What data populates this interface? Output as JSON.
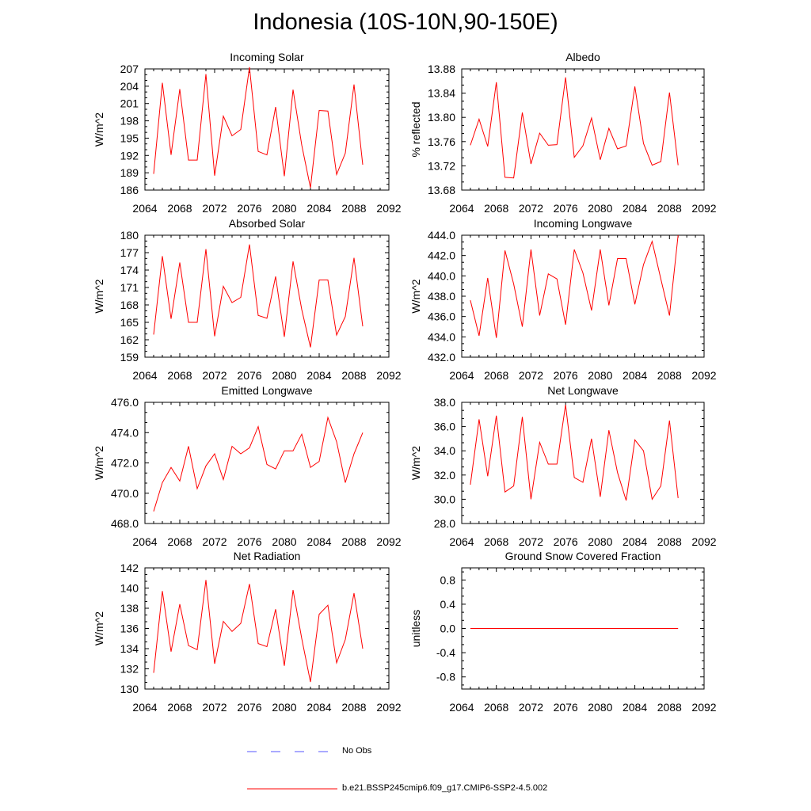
{
  "figure": {
    "title": "Indonesia (10S-10N,90-150E)",
    "series_color": "#ff0000",
    "obs_color": "#5555ff"
  },
  "legend": {
    "items": [
      {
        "label": "No Obs",
        "style": "dashed",
        "color": "#5555ff"
      },
      {
        "label": "b.e21.BSSP245cmip6.f09_g17.CMIP6-SSP2-4.5.002",
        "style": "solid",
        "color": "#ff0000"
      }
    ]
  },
  "chart_data": [
    {
      "type": "line",
      "title": "Incoming Solar",
      "ylabel": "W/m^2",
      "xlabel": "",
      "xlim": [
        2064,
        2092
      ],
      "xticks": [
        "2064",
        "2068",
        "2072",
        "2076",
        "2080",
        "2084",
        "2088",
        "2092"
      ],
      "ylim": [
        186,
        207
      ],
      "yticks": [
        "186",
        "189",
        "192",
        "195",
        "198",
        "201",
        "204",
        "207"
      ],
      "series": [
        {
          "x": [
            2065,
            2066,
            2067,
            2068,
            2069,
            2070,
            2071,
            2072,
            2073,
            2074,
            2075,
            2076,
            2077,
            2078,
            2079,
            2080,
            2081,
            2082,
            2083,
            2084,
            2085,
            2086,
            2087,
            2088,
            2089
          ],
          "values": [
            188.8,
            204.6,
            192.1,
            203.5,
            191.2,
            191.2,
            206.1,
            188.5,
            198.8,
            195.4,
            196.5,
            207.3,
            192.7,
            192.1,
            200.4,
            188.4,
            203.4,
            193.8,
            186.4,
            199.8,
            199.7,
            188.7,
            192.4,
            204.3,
            190.4
          ]
        }
      ]
    },
    {
      "type": "line",
      "title": "Albedo",
      "ylabel": "% reflected",
      "xlabel": "",
      "xlim": [
        2064,
        2092
      ],
      "xticks": [
        "2064",
        "2068",
        "2072",
        "2076",
        "2080",
        "2084",
        "2088",
        "2092"
      ],
      "ylim": [
        13.68,
        13.88
      ],
      "yticks": [
        "13.68",
        "13.72",
        "13.76",
        "13.80",
        "13.84",
        "13.88"
      ],
      "series": [
        {
          "x": [
            2065,
            2066,
            2067,
            2068,
            2069,
            2070,
            2071,
            2072,
            2073,
            2074,
            2075,
            2076,
            2077,
            2078,
            2079,
            2080,
            2081,
            2082,
            2083,
            2084,
            2085,
            2086,
            2087,
            2088,
            2089
          ],
          "values": [
            13.754,
            13.797,
            13.752,
            13.858,
            13.701,
            13.7,
            13.808,
            13.723,
            13.774,
            13.754,
            13.755,
            13.866,
            13.734,
            13.753,
            13.799,
            13.73,
            13.782,
            13.748,
            13.753,
            13.851,
            13.757,
            13.721,
            13.727,
            13.841,
            13.721
          ]
        }
      ]
    },
    {
      "type": "line",
      "title": "Absorbed Solar",
      "ylabel": "W/m^2",
      "xlabel": "",
      "xlim": [
        2064,
        2092
      ],
      "xticks": [
        "2064",
        "2068",
        "2072",
        "2076",
        "2080",
        "2084",
        "2088",
        "2092"
      ],
      "ylim": [
        159,
        180
      ],
      "yticks": [
        "159",
        "162",
        "165",
        "168",
        "171",
        "174",
        "177",
        "180"
      ],
      "series": [
        {
          "x": [
            2065,
            2066,
            2067,
            2068,
            2069,
            2070,
            2071,
            2072,
            2073,
            2074,
            2075,
            2076,
            2077,
            2078,
            2079,
            2080,
            2081,
            2082,
            2083,
            2084,
            2085,
            2086,
            2087,
            2088,
            2089
          ],
          "values": [
            162.9,
            176.4,
            165.6,
            175.3,
            165.0,
            165.0,
            177.6,
            162.6,
            171.2,
            168.4,
            169.3,
            178.4,
            166.2,
            165.7,
            172.9,
            162.5,
            175.5,
            167.2,
            160.7,
            172.3,
            172.3,
            162.8,
            166.0,
            176.1,
            164.3
          ]
        }
      ]
    },
    {
      "type": "line",
      "title": "Incoming Longwave",
      "ylabel": "W/m^2",
      "xlabel": "",
      "xlim": [
        2064,
        2092
      ],
      "xticks": [
        "2064",
        "2068",
        "2072",
        "2076",
        "2080",
        "2084",
        "2088",
        "2092"
      ],
      "ylim": [
        432.0,
        444.0
      ],
      "yticks": [
        "432.0",
        "434.0",
        "436.0",
        "438.0",
        "440.0",
        "442.0",
        "444.0"
      ],
      "series": [
        {
          "x": [
            2065,
            2066,
            2067,
            2068,
            2069,
            2070,
            2071,
            2072,
            2073,
            2074,
            2075,
            2076,
            2077,
            2078,
            2079,
            2080,
            2081,
            2082,
            2083,
            2084,
            2085,
            2086,
            2087,
            2088,
            2089
          ],
          "values": [
            437.6,
            434.1,
            439.8,
            433.9,
            442.5,
            439.2,
            435.0,
            442.6,
            436.1,
            440.2,
            439.7,
            435.2,
            442.6,
            440.3,
            436.6,
            442.6,
            437.1,
            441.7,
            441.7,
            437.2,
            441.1,
            443.4,
            439.7,
            436.1,
            444.0
          ]
        }
      ]
    },
    {
      "type": "line",
      "title": "Emitted Longwave",
      "ylabel": "W/m^2",
      "xlabel": "",
      "xlim": [
        2064,
        2092
      ],
      "xticks": [
        "2064",
        "2068",
        "2072",
        "2076",
        "2080",
        "2084",
        "2088",
        "2092"
      ],
      "ylim": [
        468.0,
        476.0
      ],
      "yticks": [
        "468.0",
        "470.0",
        "472.0",
        "474.0",
        "476.0"
      ],
      "series": [
        {
          "x": [
            2065,
            2066,
            2067,
            2068,
            2069,
            2070,
            2071,
            2072,
            2073,
            2074,
            2075,
            2076,
            2077,
            2078,
            2079,
            2080,
            2081,
            2082,
            2083,
            2084,
            2085,
            2086,
            2087,
            2088,
            2089
          ],
          "values": [
            468.8,
            470.7,
            471.7,
            470.8,
            473.1,
            470.3,
            471.8,
            472.6,
            470.9,
            473.1,
            472.6,
            473.0,
            474.4,
            471.9,
            471.6,
            472.8,
            472.8,
            473.9,
            471.7,
            472.1,
            475.0,
            473.4,
            470.7,
            472.6,
            474.0
          ]
        }
      ]
    },
    {
      "type": "line",
      "title": "Net Longwave",
      "ylabel": "W/m^2",
      "xlabel": "",
      "xlim": [
        2064,
        2092
      ],
      "xticks": [
        "2064",
        "2068",
        "2072",
        "2076",
        "2080",
        "2084",
        "2088",
        "2092"
      ],
      "ylim": [
        28.0,
        38.0
      ],
      "yticks": [
        "28.0",
        "30.0",
        "32.0",
        "34.0",
        "36.0",
        "38.0"
      ],
      "series": [
        {
          "x": [
            2065,
            2066,
            2067,
            2068,
            2069,
            2070,
            2071,
            2072,
            2073,
            2074,
            2075,
            2076,
            2077,
            2078,
            2079,
            2080,
            2081,
            2082,
            2083,
            2084,
            2085,
            2086,
            2087,
            2088,
            2089
          ],
          "values": [
            31.2,
            36.6,
            31.9,
            36.9,
            30.6,
            31.1,
            36.8,
            30.0,
            34.7,
            32.9,
            32.9,
            37.8,
            31.8,
            31.4,
            35.0,
            30.2,
            35.7,
            32.2,
            29.9,
            34.9,
            34.0,
            30.0,
            31.1,
            36.5,
            30.1
          ]
        }
      ]
    },
    {
      "type": "line",
      "title": "Net Radiation",
      "ylabel": "W/m^2",
      "xlabel": "",
      "xlim": [
        2064,
        2092
      ],
      "xticks": [
        "2064",
        "2068",
        "2072",
        "2076",
        "2080",
        "2084",
        "2088",
        "2092"
      ],
      "ylim": [
        130,
        142
      ],
      "yticks": [
        "130",
        "132",
        "134",
        "136",
        "138",
        "140",
        "142"
      ],
      "series": [
        {
          "x": [
            2065,
            2066,
            2067,
            2068,
            2069,
            2070,
            2071,
            2072,
            2073,
            2074,
            2075,
            2076,
            2077,
            2078,
            2079,
            2080,
            2081,
            2082,
            2083,
            2084,
            2085,
            2086,
            2087,
            2088,
            2089
          ],
          "values": [
            131.6,
            139.7,
            133.7,
            138.4,
            134.3,
            133.9,
            140.8,
            132.5,
            136.7,
            135.7,
            136.5,
            140.4,
            134.5,
            134.2,
            137.9,
            132.3,
            139.8,
            135.0,
            130.7,
            137.4,
            138.3,
            132.6,
            134.9,
            139.5,
            134.0
          ]
        }
      ]
    },
    {
      "type": "line",
      "title": "Ground Snow Covered Fraction",
      "ylabel": "unitless",
      "xlabel": "",
      "xlim": [
        2064,
        2092
      ],
      "xticks": [
        "2064",
        "2068",
        "2072",
        "2076",
        "2080",
        "2084",
        "2088",
        "2092"
      ],
      "ylim": [
        -1.0,
        1.0
      ],
      "yticks": [
        "-0.8",
        "-0.4",
        "0.0",
        "0.4",
        "0.8"
      ],
      "series": [
        {
          "x": [
            2065,
            2089
          ],
          "values": [
            0.0,
            0.0
          ]
        }
      ]
    }
  ]
}
